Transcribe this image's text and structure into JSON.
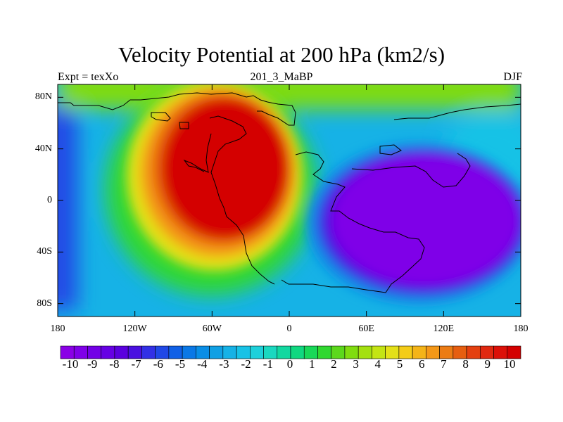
{
  "chart_data": {
    "type": "contour-map",
    "title": "Velocity Potential at 200 hPa (km2/s)",
    "left_string": "Expt = texXo",
    "center_string": "201_3_MaBP",
    "right_string": "DJF",
    "x_ticks": [
      "180",
      "120W",
      "60W",
      "0",
      "60E",
      "120E",
      "180"
    ],
    "x_values": [
      -180,
      -120,
      -60,
      0,
      60,
      120,
      180
    ],
    "y_ticks": [
      "80N",
      "40N",
      "0",
      "40S",
      "80S"
    ],
    "y_values": [
      80,
      40,
      0,
      -40,
      -80
    ],
    "xlim": [
      -180,
      180
    ],
    "ylim": [
      -90,
      90
    ],
    "colorbar": {
      "labels": [
        "-10",
        "-9",
        "-8",
        "-7",
        "-6",
        "-5",
        "-4",
        "-3",
        "-2",
        "-1",
        "0",
        "1",
        "2",
        "3",
        "4",
        "5",
        "6",
        "7",
        "8",
        "9",
        "10"
      ],
      "colors": [
        "#8a00e6",
        "#7f00e8",
        "#7300e6",
        "#6600e4",
        "#5a00de",
        "#4a10e0",
        "#3230e6",
        "#2048e6",
        "#1060e6",
        "#0a78e6",
        "#0a8ee6",
        "#10a0e4",
        "#16b2e6",
        "#18c2e6",
        "#1ed0da",
        "#1ad8c0",
        "#12d8a0",
        "#10d880",
        "#18d858",
        "#30d830",
        "#5cd81c",
        "#80dc10",
        "#a4e010",
        "#c4e414",
        "#e4e018",
        "#f4cc18",
        "#f4b418",
        "#f49818",
        "#ec7c14",
        "#e65e10",
        "#e44010",
        "#e02810",
        "#dc1008",
        "#d40000"
      ]
    },
    "field_centers": [
      {
        "name": "upper-level divergence maximum",
        "lon": -60,
        "lat": 15,
        "value": 10
      },
      {
        "name": "upper-level convergence minimum",
        "lon": 95,
        "lat": -12,
        "value": -10
      }
    ]
  }
}
